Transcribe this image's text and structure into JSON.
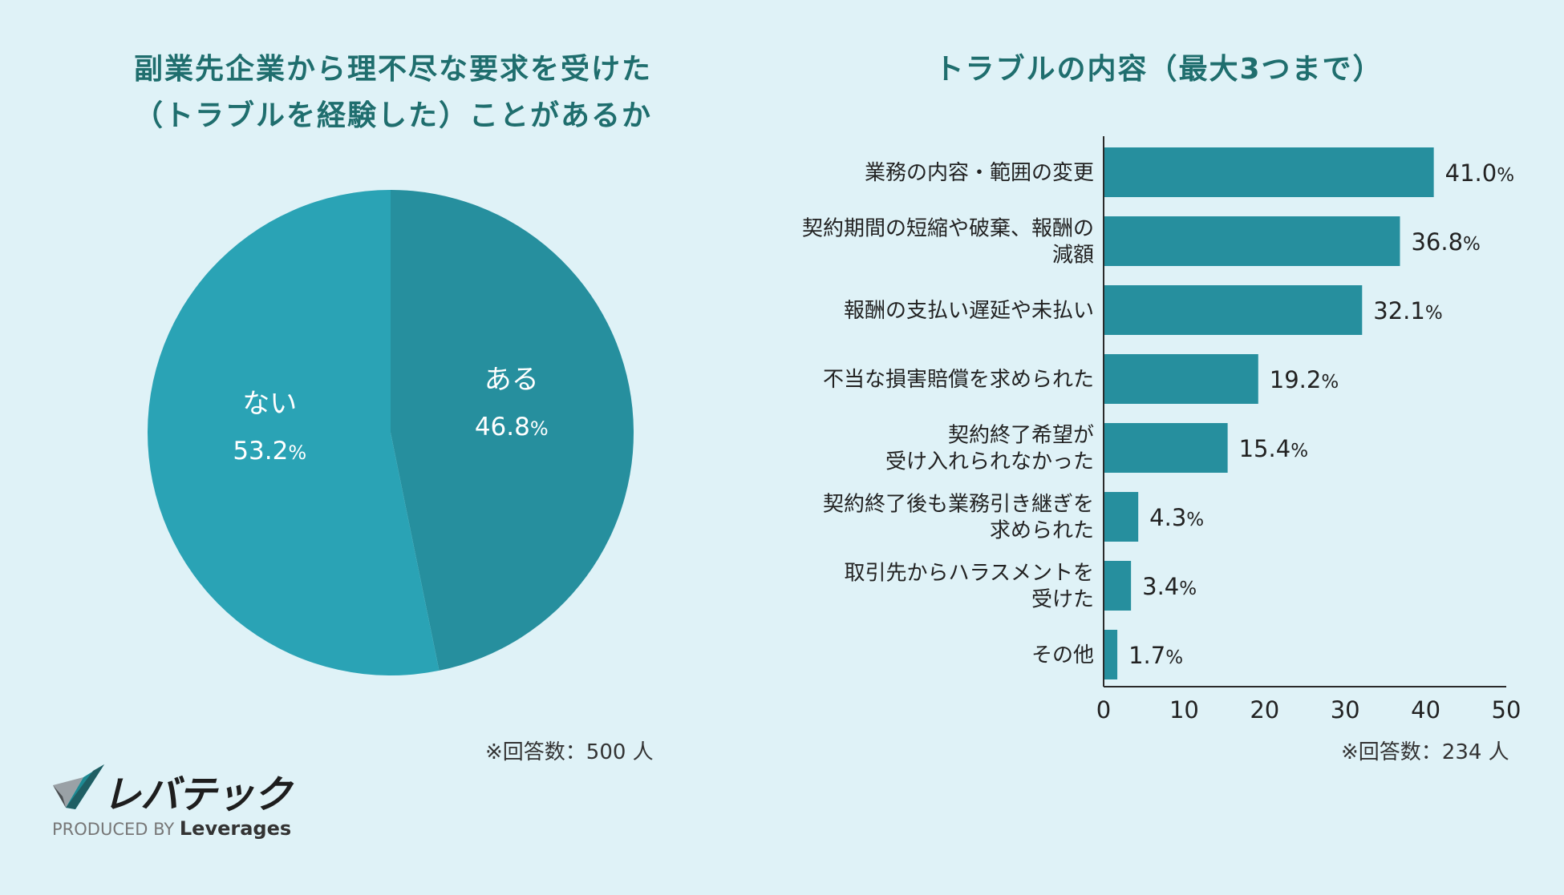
{
  "chart_data": [
    {
      "type": "pie",
      "title_lines": [
        "副業先企業から理不尽な要求を受けた",
        "（トラブルを経験した）ことがあるか"
      ],
      "slices": [
        {
          "label": "ある",
          "value": 46.8,
          "value_text": "46.8",
          "unit": "%",
          "color": "#268f9e"
        },
        {
          "label": "ない",
          "value": 53.2,
          "value_text": "53.2",
          "unit": "%",
          "color": "#2aa3b5"
        }
      ],
      "note": "※回答数：500 人"
    },
    {
      "type": "bar",
      "orientation": "horizontal",
      "title": "トラブルの内容（最大3つまで）",
      "categories": [
        [
          "業務の内容・範囲の変更"
        ],
        [
          "契約期間の短縮や破棄、報酬の",
          "減額"
        ],
        [
          "報酬の支払い遅延や未払い"
        ],
        [
          "不当な損害賠償を求められた"
        ],
        [
          "契約終了希望が",
          "受け入れられなかった"
        ],
        [
          "契約終了後も業務引き継ぎを",
          "求められた"
        ],
        [
          "取引先からハラスメントを",
          "受けた"
        ],
        [
          "その他"
        ]
      ],
      "values": [
        41.0,
        36.8,
        32.1,
        19.2,
        15.4,
        4.3,
        3.4,
        1.7
      ],
      "value_texts": [
        "41.0",
        "36.8",
        "32.1",
        "19.2",
        "15.4",
        "4.3",
        "3.4",
        "1.7"
      ],
      "unit": "%",
      "xlim": [
        0,
        50
      ],
      "xticks": [
        "0",
        "10",
        "20",
        "30",
        "40",
        "50"
      ],
      "bar_color": "#268f9e",
      "note": "※回答数：234 人"
    }
  ],
  "logo": {
    "brand": "レバテック",
    "produced_by": "PRODUCED BY",
    "company": "Leverages"
  }
}
